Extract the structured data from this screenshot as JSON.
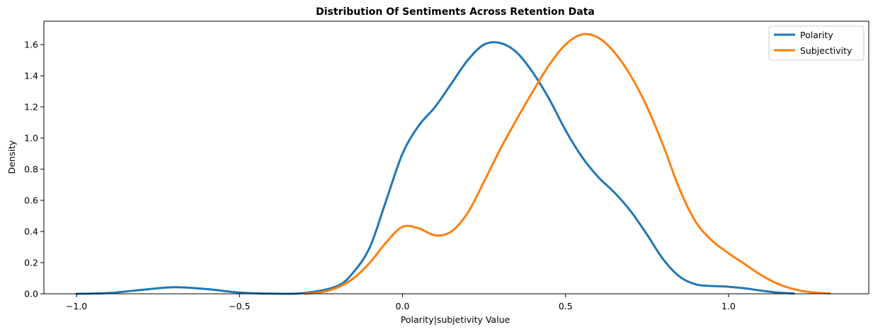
{
  "chart_data": {
    "type": "line",
    "title": "Distribution Of Sentiments Across Retention Data",
    "xlabel": "Polarity|subjetivity Value",
    "ylabel": "Density",
    "xlim": [
      -1.1,
      1.43
    ],
    "ylim": [
      0,
      1.75
    ],
    "x_ticks": [
      -1.0,
      -0.5,
      0.0,
      0.5,
      1.0
    ],
    "x_tick_labels": [
      "−1.0",
      "−0.5",
      "0.0",
      "0.5",
      "1.0"
    ],
    "y_ticks": [
      0.0,
      0.2,
      0.4,
      0.6,
      0.8,
      1.0,
      1.2,
      1.4,
      1.6
    ],
    "y_tick_labels": [
      "0.0",
      "0.2",
      "0.4",
      "0.6",
      "0.8",
      "1.0",
      "1.2",
      "1.4",
      "1.6"
    ],
    "grid": false,
    "legend_position": "top-right",
    "series": [
      {
        "name": "Polarity",
        "color": "#1f77b4",
        "points": [
          [
            -1.0,
            0.0
          ],
          [
            -0.9,
            0.005
          ],
          [
            -0.8,
            0.025
          ],
          [
            -0.7,
            0.042
          ],
          [
            -0.6,
            0.03
          ],
          [
            -0.5,
            0.008
          ],
          [
            -0.4,
            0.001
          ],
          [
            -0.3,
            0.005
          ],
          [
            -0.2,
            0.05
          ],
          [
            -0.15,
            0.14
          ],
          [
            -0.1,
            0.3
          ],
          [
            -0.05,
            0.6
          ],
          [
            0.0,
            0.9
          ],
          [
            0.05,
            1.08
          ],
          [
            0.1,
            1.2
          ],
          [
            0.15,
            1.35
          ],
          [
            0.2,
            1.5
          ],
          [
            0.25,
            1.6
          ],
          [
            0.3,
            1.61
          ],
          [
            0.35,
            1.55
          ],
          [
            0.4,
            1.42
          ],
          [
            0.45,
            1.25
          ],
          [
            0.5,
            1.05
          ],
          [
            0.55,
            0.88
          ],
          [
            0.6,
            0.75
          ],
          [
            0.65,
            0.65
          ],
          [
            0.7,
            0.53
          ],
          [
            0.75,
            0.38
          ],
          [
            0.8,
            0.22
          ],
          [
            0.85,
            0.11
          ],
          [
            0.9,
            0.06
          ],
          [
            0.95,
            0.05
          ],
          [
            1.0,
            0.045
          ],
          [
            1.05,
            0.035
          ],
          [
            1.1,
            0.02
          ],
          [
            1.15,
            0.008
          ],
          [
            1.2,
            0.002
          ]
        ]
      },
      {
        "name": "Subjectivity",
        "color": "#ff7f0e",
        "points": [
          [
            -0.3,
            0.0
          ],
          [
            -0.25,
            0.01
          ],
          [
            -0.2,
            0.04
          ],
          [
            -0.15,
            0.1
          ],
          [
            -0.1,
            0.2
          ],
          [
            -0.05,
            0.33
          ],
          [
            0.0,
            0.43
          ],
          [
            0.05,
            0.42
          ],
          [
            0.1,
            0.375
          ],
          [
            0.15,
            0.4
          ],
          [
            0.2,
            0.52
          ],
          [
            0.25,
            0.72
          ],
          [
            0.3,
            0.93
          ],
          [
            0.35,
            1.12
          ],
          [
            0.4,
            1.3
          ],
          [
            0.45,
            1.47
          ],
          [
            0.5,
            1.6
          ],
          [
            0.55,
            1.665
          ],
          [
            0.6,
            1.645
          ],
          [
            0.65,
            1.55
          ],
          [
            0.7,
            1.4
          ],
          [
            0.75,
            1.2
          ],
          [
            0.8,
            0.95
          ],
          [
            0.85,
            0.67
          ],
          [
            0.9,
            0.46
          ],
          [
            0.95,
            0.34
          ],
          [
            1.0,
            0.26
          ],
          [
            1.05,
            0.19
          ],
          [
            1.1,
            0.12
          ],
          [
            1.15,
            0.065
          ],
          [
            1.2,
            0.03
          ],
          [
            1.25,
            0.01
          ],
          [
            1.31,
            0.002
          ]
        ]
      }
    ]
  }
}
